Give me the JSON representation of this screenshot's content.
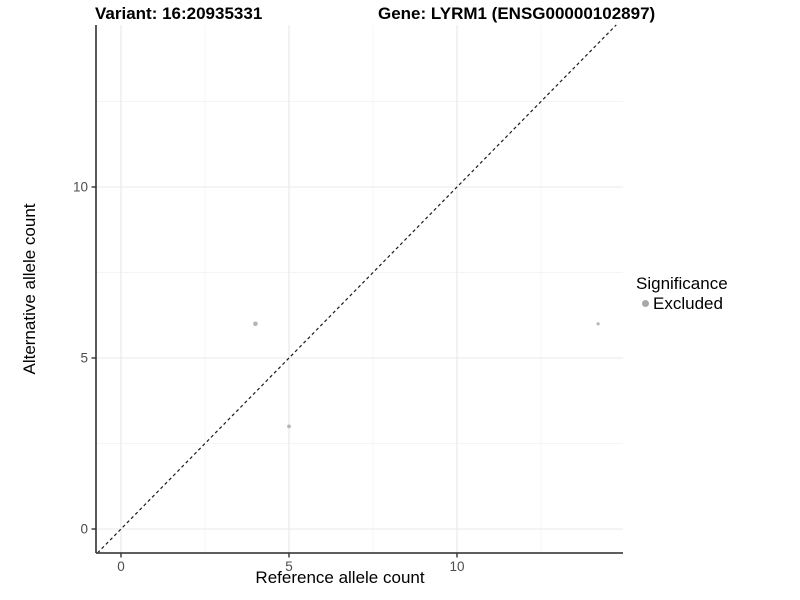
{
  "chart_data": {
    "type": "scatter",
    "titles": {
      "left": "Variant: 16:20935331",
      "right": "Gene: LYRM1 (ENSG00000102897)"
    },
    "xlabel": "Reference allele count",
    "ylabel": "Alternative allele count",
    "xlim": [
      -0.75,
      14.93
    ],
    "ylim": [
      -0.7,
      14.74
    ],
    "x_major_ticks": [
      0,
      5,
      10
    ],
    "y_major_ticks": [
      0,
      5,
      10
    ],
    "x_minor_gridlines": [
      2.5,
      7.5,
      12.5
    ],
    "y_minor_gridlines": [
      2.5,
      7.5,
      12.5
    ],
    "grid": true,
    "identity_line": {
      "style": "dashed",
      "slope": 1,
      "intercept": 0
    },
    "legend": {
      "title": "Significance",
      "position": "right",
      "items": [
        {
          "label": "Excluded",
          "color": "#a8a8a8"
        }
      ]
    },
    "series": [
      {
        "name": "Excluded",
        "color": "#b5b5b5",
        "points": [
          [
            4,
            6
          ],
          [
            5,
            3
          ],
          [
            14.2,
            6
          ]
        ],
        "point_radius_px": [
          2.3,
          1.9,
          1.6
        ]
      }
    ],
    "colors": {
      "axis_line": "#474747",
      "tick_mark": "#333333",
      "tick_label": "#4d4d4d",
      "grid_major": "#e8e8e8",
      "grid_minor": "#f4f4f4",
      "identity_line": "#1a1a1a",
      "background": "#ffffff"
    }
  }
}
